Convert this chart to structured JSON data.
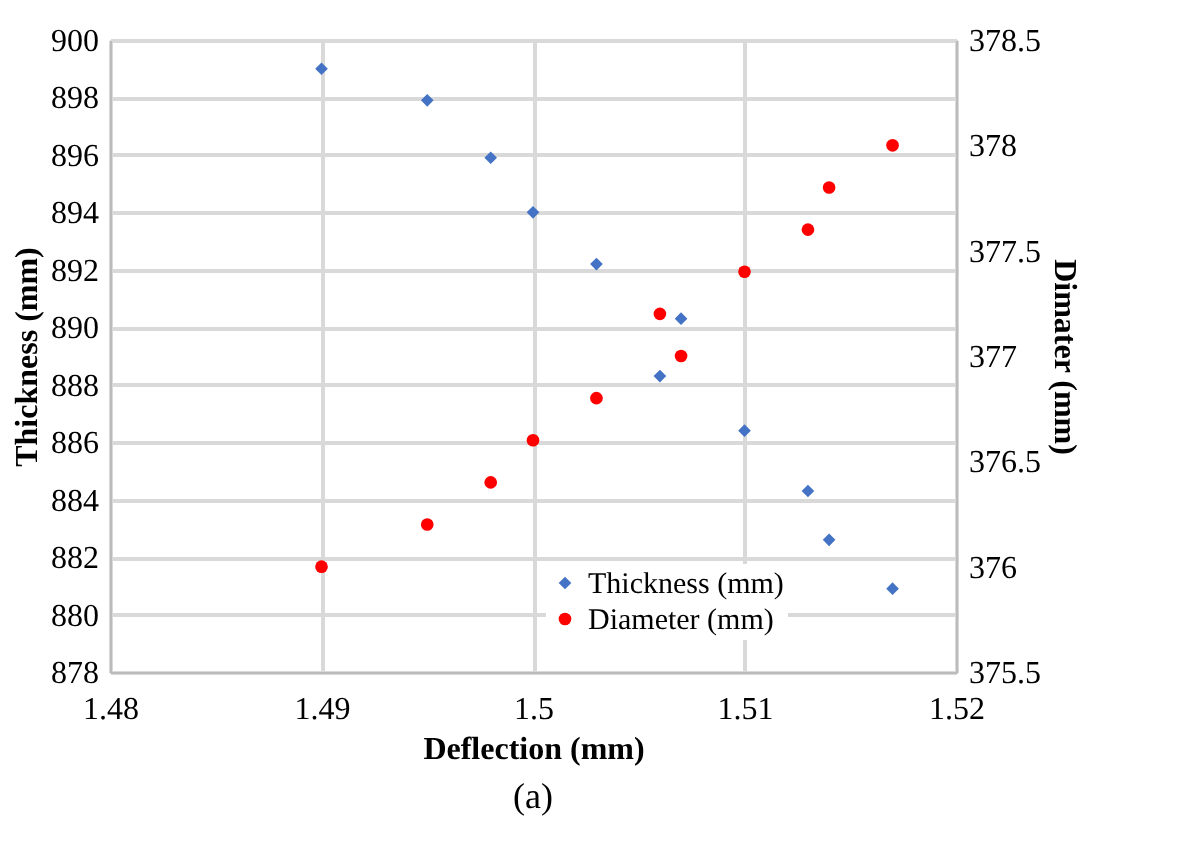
{
  "chart_data": {
    "type": "scatter",
    "xlabel": "Deflection (mm)",
    "ylabel": "Thickness (mm)",
    "y2label": "Dimater (mm)",
    "annotations": [
      "(a)"
    ],
    "xlim": [
      1.48,
      1.52
    ],
    "xticks": [
      1.48,
      1.49,
      1.5,
      1.51,
      1.52
    ],
    "ylim": [
      878,
      900
    ],
    "yticks": [
      878,
      880,
      882,
      884,
      886,
      888,
      890,
      892,
      894,
      896,
      898,
      900
    ],
    "y2lim": [
      375.5,
      378.5
    ],
    "y2ticks": [
      375.5,
      376,
      376.5,
      377,
      377.5,
      378,
      378.5
    ],
    "grid": true,
    "legend": "bottom right",
    "series": [
      {
        "name": "Thickness (mm)",
        "color": "#4472c4",
        "marker": "diamond",
        "x": [
          1.49,
          1.495,
          1.498,
          1.5,
          1.503,
          1.507,
          1.506,
          1.51,
          1.513,
          1.514,
          1.517
        ],
        "values": [
          899.0,
          897.9,
          895.9,
          894.0,
          892.2,
          890.3,
          888.3,
          886.4,
          884.3,
          882.6,
          880.9
        ]
      },
      {
        "name": "Diameter (mm)",
        "color": "#ff0000",
        "marker": "circle",
        "axis": "y2",
        "x": [
          1.49,
          1.495,
          1.498,
          1.5,
          1.503,
          1.507,
          1.506,
          1.51,
          1.513,
          1.514,
          1.517
        ],
        "values": [
          376.0,
          376.2,
          376.4,
          376.6,
          376.8,
          377.0,
          377.2,
          377.4,
          377.6,
          377.8,
          378.0
        ]
      }
    ]
  }
}
